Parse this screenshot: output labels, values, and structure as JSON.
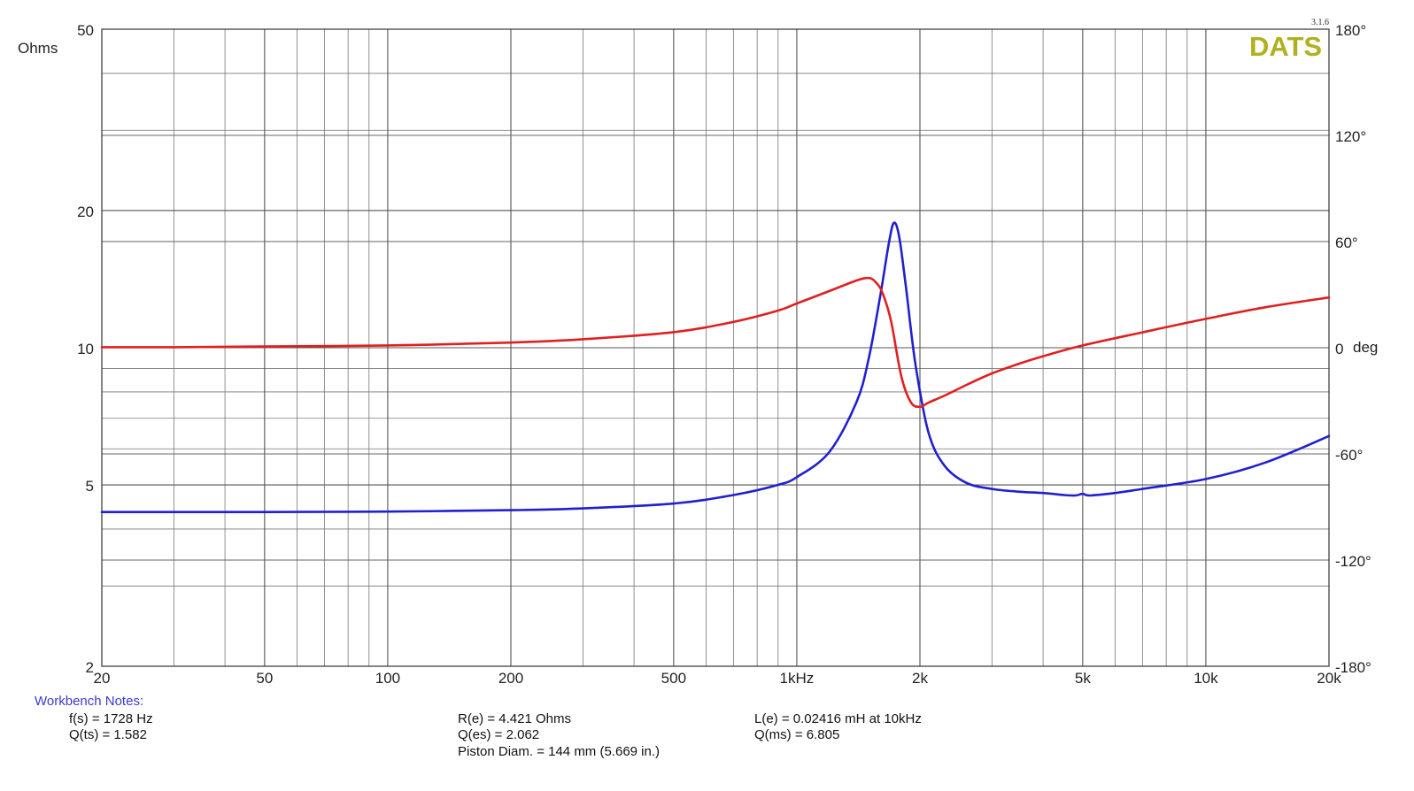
{
  "chart_data": {
    "type": "line",
    "x_scale": "log",
    "xlim": [
      20,
      20000
    ],
    "y_left_scale": "log",
    "y_left_lim": [
      2,
      50
    ],
    "y_right_lim": [
      -180,
      180
    ],
    "grid": true,
    "left_axis_label": "Ohms",
    "right_axis_label": "deg",
    "left_axis_label_color": "#3a3ad0",
    "right_axis_label_color": "#e02020",
    "x_tick_labels": [
      {
        "v": 20,
        "t": "20"
      },
      {
        "v": 50,
        "t": "50"
      },
      {
        "v": 100,
        "t": "100"
      },
      {
        "v": 200,
        "t": "200"
      },
      {
        "v": 500,
        "t": "500"
      },
      {
        "v": 1000,
        "t": "1kHz"
      },
      {
        "v": 2000,
        "t": "2k"
      },
      {
        "v": 5000,
        "t": "5k"
      },
      {
        "v": 10000,
        "t": "10k"
      },
      {
        "v": 20000,
        "t": "20k"
      }
    ],
    "y_left_tick_labels": [
      {
        "v": 50,
        "t": "50"
      },
      {
        "v": 20,
        "t": "20"
      },
      {
        "v": 10,
        "t": "10"
      },
      {
        "v": 5,
        "t": "5"
      },
      {
        "v": 2,
        "t": "2"
      }
    ],
    "y_right_tick_labels": [
      {
        "v": 180,
        "t": "180°"
      },
      {
        "v": 120,
        "t": "120°"
      },
      {
        "v": 60,
        "t": "60°"
      },
      {
        "v": 0,
        "t": "0"
      },
      {
        "v": -60,
        "t": "-60°"
      },
      {
        "v": -120,
        "t": "-120°"
      },
      {
        "v": -180,
        "t": "-180°"
      }
    ],
    "series": [
      {
        "axis": "left",
        "color": "#2020d0",
        "x": [
          20,
          30,
          50,
          100,
          200,
          300,
          500,
          700,
          900,
          1000,
          1200,
          1400,
          1500,
          1600,
          1680,
          1728,
          1780,
          1850,
          1950,
          2100,
          2300,
          2600,
          3000,
          3500,
          4000,
          4500,
          4800,
          5000,
          5200,
          6000,
          7000,
          10000,
          14000,
          20000
        ],
        "values": [
          4.36,
          4.36,
          4.36,
          4.37,
          4.4,
          4.44,
          4.55,
          4.75,
          5.0,
          5.2,
          5.9,
          7.6,
          9.5,
          13.0,
          17.0,
          18.8,
          17.5,
          13.5,
          9.2,
          6.5,
          5.5,
          5.05,
          4.9,
          4.83,
          4.8,
          4.75,
          4.74,
          4.78,
          4.74,
          4.8,
          4.9,
          5.15,
          5.6,
          6.4
        ]
      },
      {
        "axis": "right",
        "color": "#e02020",
        "x": [
          20,
          30,
          50,
          100,
          200,
          300,
          500,
          700,
          900,
          1000,
          1200,
          1400,
          1500,
          1560,
          1620,
          1700,
          1800,
          1900,
          2000,
          2100,
          2300,
          2600,
          3000,
          3500,
          4000,
          5000,
          7000,
          10000,
          14000,
          20000
        ],
        "values": [
          0.3,
          0.3,
          0.7,
          1.3,
          2.9,
          4.8,
          8.8,
          14.6,
          21.0,
          25.0,
          32.0,
          38.0,
          39.4,
          37.0,
          31.0,
          15.0,
          -16.0,
          -30.8,
          -33.4,
          -31.0,
          -27.0,
          -21.0,
          -14.5,
          -9.0,
          -4.8,
          1.3,
          8.7,
          16.3,
          22.9,
          28.4
        ]
      }
    ]
  },
  "logo": {
    "text": "DATS",
    "version": "3.1.6",
    "color": "#b0b020"
  },
  "notes": {
    "title": "Workbench Notes:",
    "fs": "f(s) = 1728 Hz",
    "qts": "Q(ts) = 1.582",
    "re": "R(e) = 4.421 Ohms",
    "qes": "Q(es) = 2.062",
    "piston": "Piston Diam. = 144 mm (5.669 in.)",
    "le": "L(e) = 0.02416 mH at 10kHz",
    "qms": "Q(ms) = 6.805"
  }
}
